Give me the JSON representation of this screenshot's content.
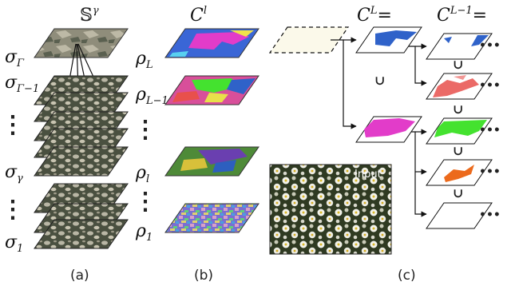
{
  "panel_a": {
    "header": "𝕊",
    "header_sup": "γ",
    "levels": [
      {
        "sym": "σ",
        "sub": "Γ"
      },
      {
        "sym": "σ",
        "sub": "Γ−1"
      },
      {
        "sym": "σ",
        "sub": "γ"
      },
      {
        "sym": "σ",
        "sub": "1"
      }
    ],
    "caption": "(a)"
  },
  "panel_b": {
    "header": "C",
    "header_sup": "l",
    "levels": [
      {
        "sym": "ρ",
        "sub": "L"
      },
      {
        "sym": "ρ",
        "sub": "L−1"
      },
      {
        "sym": "ρ",
        "sub": "l"
      },
      {
        "sym": "ρ",
        "sub": "1"
      }
    ],
    "caption": "(b)"
  },
  "panel_c": {
    "col1": {
      "sym": "C",
      "sup": "L",
      "eq": "="
    },
    "col2": {
      "sym": "C",
      "sup": "L−1",
      "eq": "="
    },
    "union": "∪",
    "ellipsis": "•••",
    "input_label": "Input",
    "caption": "(c)"
  },
  "vdots": "⋮",
  "colors": {
    "texture_dark": "#4a5040",
    "texture_light": "#b9b6a5",
    "blue": "#2f62c9",
    "magenta": "#e23cc9",
    "green": "#44e22f",
    "red": "#e8504c",
    "orange": "#ec6a1c",
    "cream": "#fbf9ea"
  }
}
